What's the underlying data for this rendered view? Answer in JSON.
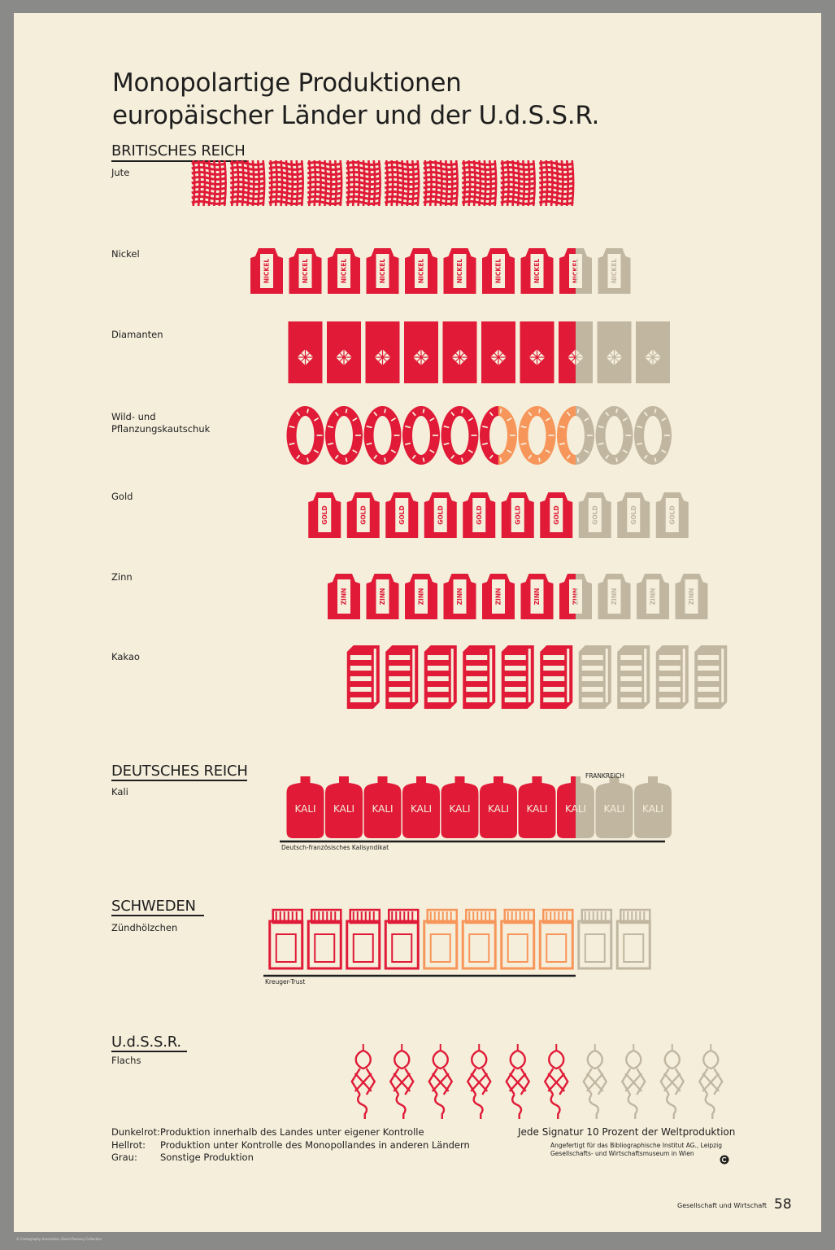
{
  "title_line1": "Monopolartige Produktionen",
  "title_line2": "europäischer Länder und der U.d.S.S.R.",
  "colors": {
    "dark_red": "#e01a37",
    "light_red": "#f7965a",
    "grey": "#c1b7a1",
    "paper": "#f5eedb",
    "ink": "#1e1e1e"
  },
  "countries": {
    "britain": "BRITISCHES REICH",
    "germany": "DEUTSCHES REICH",
    "sweden": "SCHWEDEN",
    "ussr": "U.d.S.S.R."
  },
  "notes": {
    "france": "FRANKREICH",
    "kali_syndicate": "Deutsch-französisches Kalisyndikat",
    "kreuger": "Kreuger-Trust"
  },
  "legend": [
    {
      "key": "Dunkelrot:",
      "text": "Produktion innerhalb des Landes unter eigener Kontrolle"
    },
    {
      "key": "Hellrot:",
      "text": "Produktion unter Kontrolle des Monopollandes in anderen Ländern"
    },
    {
      "key": "Grau:",
      "text": "Sonstige Produktion"
    }
  ],
  "signature_note": "Jede Signatur 10 Prozent der Weltproduktion",
  "credit_line1": "Angefertigt für das Bibliographische Institut AG., Leipzig",
  "credit_line2": "Gesellschafts- und Wirtschaftsmuseum in Wien",
  "footer_series": "Gesellschaft und Wirtschaft",
  "page_number": "58",
  "collection_note": "© Cartography Associates, David Rumsey Collection",
  "chart_data": {
    "type": "pictogram",
    "unit": "Jede Signatur 10 Prozent der Weltproduktion",
    "categories": [
      "Dunkelrot",
      "Hellrot",
      "Grau"
    ],
    "rows": [
      {
        "label": "Jute",
        "group": "britain",
        "icon": "jute",
        "icon_text": "",
        "dark": 10,
        "light": 0,
        "grey": 0
      },
      {
        "label": "Nickel",
        "group": "britain",
        "icon": "sack",
        "icon_text": "NICKEL",
        "dark": 8.5,
        "light": 0,
        "grey": 1.5
      },
      {
        "label": "Diamanten",
        "group": "britain",
        "icon": "diamond",
        "icon_text": "",
        "dark": 7.5,
        "light": 0,
        "grey": 2.5
      },
      {
        "label": "Wild- und\nPflanzungskautschuk",
        "group": "britain",
        "icon": "tire",
        "icon_text": "",
        "dark": 5.5,
        "light": 2,
        "grey": 2.5
      },
      {
        "label": "Gold",
        "group": "britain",
        "icon": "sack",
        "icon_text": "GOLD",
        "dark": 7,
        "light": 0,
        "grey": 3
      },
      {
        "label": "Zinn",
        "group": "britain",
        "icon": "sack",
        "icon_text": "ZINN",
        "dark": 6.5,
        "light": 0,
        "grey": 3.5
      },
      {
        "label": "Kakao",
        "group": "britain",
        "icon": "crate",
        "icon_text": "",
        "dark": 6,
        "light": 0,
        "grey": 4
      },
      {
        "label": "Kali",
        "group": "germany",
        "icon": "bag",
        "icon_text": "KALI",
        "dark": 7.5,
        "light": 0,
        "grey": 2.5
      },
      {
        "label": "Zündhölzchen",
        "group": "sweden",
        "icon": "matchbox",
        "icon_text": "",
        "dark": 4,
        "light": 4,
        "grey": 2
      },
      {
        "label": "Flachs",
        "group": "ussr",
        "icon": "flax",
        "icon_text": "",
        "dark": 6,
        "light": 0,
        "grey": 4
      }
    ]
  }
}
